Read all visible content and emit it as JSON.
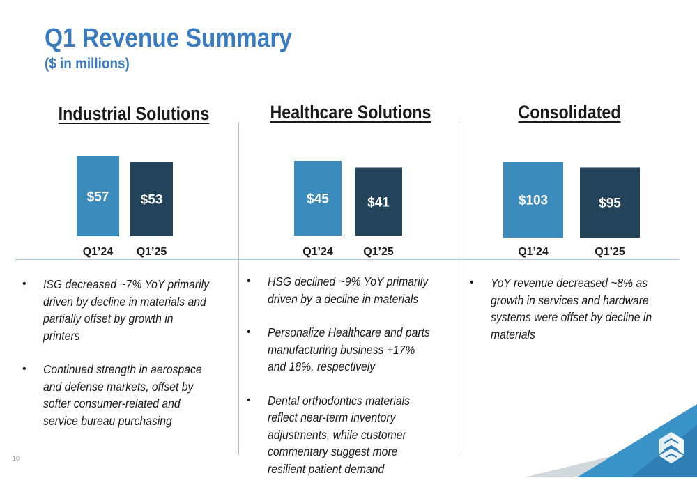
{
  "title": "Q1 Revenue Summary",
  "subtitle": "($ in millions)",
  "page_number": "10",
  "colors": {
    "title": "#3a7bbf",
    "bar_q1_24": "#3b8bbd",
    "bar_q1_25": "#23435a",
    "divider": "#a9c6df"
  },
  "logo_icon": "3d-systems-logo-icon",
  "panels": [
    {
      "title": "Industrial Solutions",
      "bullets": [
        "ISG decreased ~7% YoY primarily driven by decline in materials and partially offset by growth in printers",
        "Continued strength in aerospace and defense markets, offset by softer consumer-related and service bureau purchasing"
      ]
    },
    {
      "title": "Healthcare Solutions",
      "bullets": [
        "HSG declined ~9% YoY primarily driven by a decline in materials",
        "Personalize Healthcare and parts manufacturing business +17% and 18%, respectively",
        "Dental orthodontics materials reflect near-term inventory adjustments, while customer commentary suggest more resilient patient demand"
      ]
    },
    {
      "title": "Consolidated",
      "bullets": [
        "YoY revenue decreased ~8% as growth in services and hardware systems were offset by decline in materials"
      ]
    }
  ],
  "chart_data": [
    {
      "type": "bar",
      "title": "Industrial Solutions",
      "categories": [
        "Q1’24",
        "Q1’25"
      ],
      "values": [
        57,
        53
      ],
      "labels": [
        "$57",
        "$53"
      ]
    },
    {
      "type": "bar",
      "title": "Healthcare Solutions",
      "categories": [
        "Q1’24",
        "Q1’25"
      ],
      "values": [
        45,
        41
      ],
      "labels": [
        "$45",
        "$41"
      ]
    },
    {
      "type": "bar",
      "title": "Consolidated",
      "categories": [
        "Q1’24",
        "Q1’25"
      ],
      "values": [
        103,
        95
      ],
      "labels": [
        "$103",
        "$95"
      ]
    }
  ]
}
